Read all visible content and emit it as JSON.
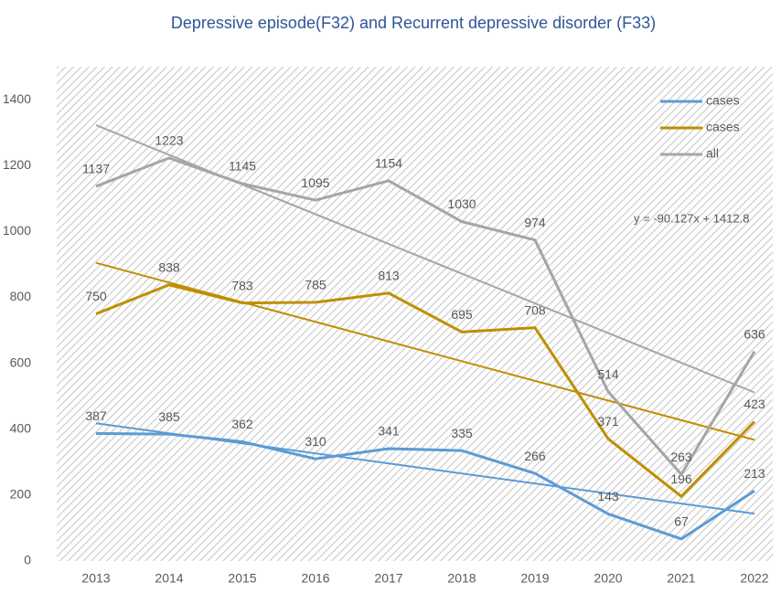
{
  "chart_data": {
    "type": "line",
    "title": "Depressive episode(F32) and Recurrent depressive disorder (F33)",
    "categories": [
      "2013",
      "2014",
      "2015",
      "2016",
      "2017",
      "2018",
      "2019",
      "2020",
      "2021",
      "2022"
    ],
    "series": [
      {
        "name": "cases",
        "color": "#5b9bd5",
        "values": [
          387,
          385,
          362,
          310,
          341,
          335,
          266,
          143,
          67,
          213
        ]
      },
      {
        "name": "cases",
        "color": "#bf8f00",
        "values": [
          750,
          838,
          783,
          785,
          813,
          695,
          708,
          371,
          196,
          423
        ]
      },
      {
        "name": "all",
        "color": "#a5a5a5",
        "values": [
          1137,
          1223,
          1145,
          1095,
          1154,
          1030,
          974,
          514,
          263,
          636
        ]
      }
    ],
    "trendline": true,
    "annotation": "y = -90.127x + 1412.8",
    "ylim": [
      0,
      1500
    ],
    "yticks": [
      0,
      200,
      400,
      600,
      800,
      1000,
      1200,
      1400
    ],
    "grid": false,
    "legend": "top-right"
  }
}
